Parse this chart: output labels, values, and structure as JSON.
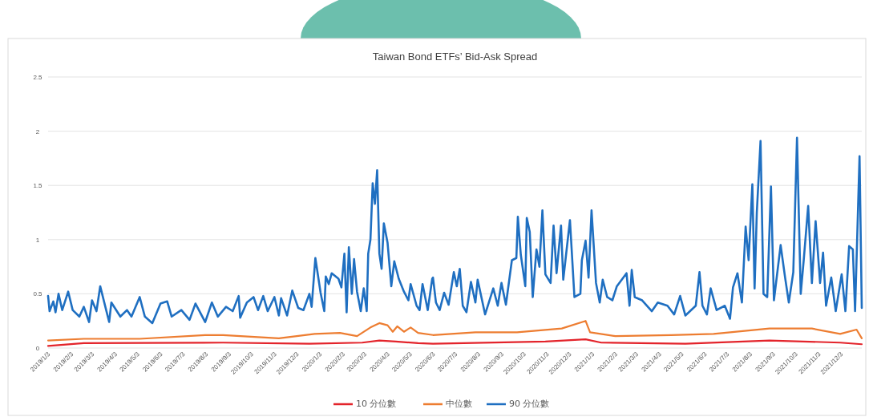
{
  "chart_data": {
    "type": "line",
    "title": "Taiwan Bond ETFs’ Bid-Ask Spread",
    "xlim": [
      "2019-01-03",
      "2021-12-31"
    ],
    "ylim": [
      0,
      2.5
    ],
    "yticks": [
      0,
      0.5,
      1,
      1.5,
      2,
      2.5
    ],
    "grid": "y",
    "legend": "bottom",
    "xticks": [
      {
        "value": "2019-01-03",
        "label": "2019/1/3"
      },
      {
        "value": "2019-02-03",
        "label": "2019/2/3"
      },
      {
        "value": "2019-03-03",
        "label": "2019/3/3"
      },
      {
        "value": "2019-04-03",
        "label": "2019/4/3"
      },
      {
        "value": "2019-05-03",
        "label": "2019/5/3"
      },
      {
        "value": "2019-06-03",
        "label": "2019/6/3"
      },
      {
        "value": "2019-07-03",
        "label": "2019/7/3"
      },
      {
        "value": "2019-08-03",
        "label": "2019/8/3"
      },
      {
        "value": "2019-09-03",
        "label": "2019/9/3"
      },
      {
        "value": "2019-10-03",
        "label": "2019/10/3"
      },
      {
        "value": "2019-11-03",
        "label": "2019/11/3"
      },
      {
        "value": "2019-12-03",
        "label": "2019/12/3"
      },
      {
        "value": "2020-01-03",
        "label": "2020/1/3"
      },
      {
        "value": "2020-02-03",
        "label": "2020/2/3"
      },
      {
        "value": "2020-03-03",
        "label": "2020/3/3"
      },
      {
        "value": "2020-04-03",
        "label": "2020/4/3"
      },
      {
        "value": "2020-05-03",
        "label": "2020/5/3"
      },
      {
        "value": "2020-06-03",
        "label": "2020/6/3"
      },
      {
        "value": "2020-07-03",
        "label": "2020/7/3"
      },
      {
        "value": "2020-08-03",
        "label": "2020/8/3"
      },
      {
        "value": "2020-09-03",
        "label": "2020/9/3"
      },
      {
        "value": "2020-10-03",
        "label": "2020/10/3"
      },
      {
        "value": "2020-11-03",
        "label": "2020/11/3"
      },
      {
        "value": "2020-12-03",
        "label": "2020/12/3"
      },
      {
        "value": "2021-01-03",
        "label": "2021/1/3"
      },
      {
        "value": "2021-02-03",
        "label": "2021/2/3"
      },
      {
        "value": "2021-03-03",
        "label": "2021/3/3"
      },
      {
        "value": "2021-04-03",
        "label": "2021/4/3"
      },
      {
        "value": "2021-05-03",
        "label": "2021/5/3"
      },
      {
        "value": "2021-06-03",
        "label": "2021/6/3"
      },
      {
        "value": "2021-07-03",
        "label": "2021/7/3"
      },
      {
        "value": "2021-08-03",
        "label": "2021/8/3"
      },
      {
        "value": "2021-09-03",
        "label": "2021/9/3"
      },
      {
        "value": "2021-10-03",
        "label": "2021/10/3"
      },
      {
        "value": "2021-11-03",
        "label": "2021/11/3"
      },
      {
        "value": "2021-12-03",
        "label": "2021/12/3"
      }
    ],
    "series": [
      {
        "name": "10 分位數",
        "color": "#e3242b",
        "x": [
          "2019-01-03",
          "2019-02-20",
          "2019-08-26",
          "2019-12-20",
          "2020-02-29",
          "2020-03-23",
          "2020-04-14",
          "2020-05-14",
          "2020-06-03",
          "2020-11-01",
          "2020-12-25",
          "2021-01-15",
          "2021-05-08",
          "2021-08-29",
          "2021-12-02",
          "2021-12-31"
        ],
        "values": [
          0.02,
          0.045,
          0.05,
          0.04,
          0.05,
          0.07,
          0.06,
          0.045,
          0.04,
          0.06,
          0.08,
          0.05,
          0.04,
          0.07,
          0.05,
          0.035
        ]
      },
      {
        "name": "中位數",
        "color": "#ed7d31",
        "x": [
          "2019-01-03",
          "2019-02-20",
          "2019-05-06",
          "2019-08-03",
          "2019-08-26",
          "2019-11-09",
          "2019-12-27",
          "2020-01-30",
          "2020-02-22",
          "2020-03-11",
          "2020-03-23",
          "2020-04-03",
          "2020-04-10",
          "2020-04-16",
          "2020-04-25",
          "2020-05-04",
          "2020-05-14",
          "2020-06-03",
          "2020-07-30",
          "2020-09-24",
          "2020-11-23",
          "2020-12-25",
          "2020-12-31",
          "2021-02-03",
          "2021-04-19",
          "2021-06-15",
          "2021-08-29",
          "2021-10-25",
          "2021-12-02",
          "2021-12-24",
          "2021-12-31"
        ],
        "values": [
          0.07,
          0.085,
          0.085,
          0.12,
          0.12,
          0.09,
          0.13,
          0.14,
          0.11,
          0.19,
          0.23,
          0.21,
          0.15,
          0.2,
          0.15,
          0.19,
          0.14,
          0.12,
          0.145,
          0.145,
          0.18,
          0.25,
          0.145,
          0.11,
          0.12,
          0.13,
          0.18,
          0.18,
          0.13,
          0.17,
          0.09
        ]
      },
      {
        "name": "90 分位數",
        "color": "#1f6fc1",
        "x": [
          "2019-01-03",
          "2019-01-05",
          "2019-01-10",
          "2019-01-13",
          "2019-01-17",
          "2019-01-22",
          "2019-01-30",
          "2019-02-05",
          "2019-02-14",
          "2019-02-20",
          "2019-02-27",
          "2019-03-03",
          "2019-03-09",
          "2019-03-14",
          "2019-03-22",
          "2019-03-26",
          "2019-03-29",
          "2019-04-10",
          "2019-04-19",
          "2019-04-25",
          "2019-05-06",
          "2019-05-13",
          "2019-05-23",
          "2019-06-03",
          "2019-06-12",
          "2019-06-18",
          "2019-07-01",
          "2019-07-12",
          "2019-07-20",
          "2019-08-02",
          "2019-08-11",
          "2019-08-19",
          "2019-08-30",
          "2019-09-08",
          "2019-09-16",
          "2019-09-18",
          "2019-09-27",
          "2019-10-06",
          "2019-10-12",
          "2019-10-19",
          "2019-10-25",
          "2019-11-03",
          "2019-11-09",
          "2019-11-12",
          "2019-11-20",
          "2019-11-27",
          "2019-12-05",
          "2019-12-12",
          "2019-12-20",
          "2019-12-23",
          "2019-12-28",
          "2020-01-04",
          "2020-01-09",
          "2020-01-11",
          "2020-01-15",
          "2020-01-19",
          "2020-01-28",
          "2020-02-01",
          "2020-02-05",
          "2020-02-08",
          "2020-02-11",
          "2020-02-15",
          "2020-02-18",
          "2020-02-22",
          "2020-02-27",
          "2020-03-02",
          "2020-03-06",
          "2020-03-08",
          "2020-03-11",
          "2020-03-14",
          "2020-03-17",
          "2020-03-20",
          "2020-03-23",
          "2020-03-26",
          "2020-03-29",
          "2020-04-03",
          "2020-04-08",
          "2020-04-12",
          "2020-04-18",
          "2020-04-25",
          "2020-05-01",
          "2020-05-04",
          "2020-05-12",
          "2020-05-16",
          "2020-05-20",
          "2020-05-27",
          "2020-06-02",
          "2020-06-03",
          "2020-06-07",
          "2020-06-12",
          "2020-06-18",
          "2020-06-24",
          "2020-07-01",
          "2020-07-05",
          "2020-07-09",
          "2020-07-13",
          "2020-07-18",
          "2020-07-24",
          "2020-07-30",
          "2020-08-02",
          "2020-08-12",
          "2020-08-23",
          "2020-08-29",
          "2020-09-03",
          "2020-09-09",
          "2020-09-17",
          "2020-09-23",
          "2020-09-25",
          "2020-09-29",
          "2020-10-05",
          "2020-10-07",
          "2020-10-11",
          "2020-10-15",
          "2020-10-20",
          "2020-10-24",
          "2020-10-28",
          "2020-11-01",
          "2020-11-08",
          "2020-11-12",
          "2020-11-16",
          "2020-11-22",
          "2020-11-25",
          "2020-12-04",
          "2020-12-10",
          "2020-12-18",
          "2020-12-20",
          "2020-12-25",
          "2020-12-29",
          "2021-01-02",
          "2021-01-08",
          "2021-01-13",
          "2021-01-17",
          "2021-01-23",
          "2021-01-30",
          "2021-02-05",
          "2021-02-18",
          "2021-02-22",
          "2021-02-25",
          "2021-03-01",
          "2021-03-11",
          "2021-03-24",
          "2021-04-01",
          "2021-04-14",
          "2021-04-23",
          "2021-05-01",
          "2021-05-08",
          "2021-05-22",
          "2021-05-27",
          "2021-05-31",
          "2021-06-06",
          "2021-06-11",
          "2021-06-19",
          "2021-06-30",
          "2021-07-07",
          "2021-07-11",
          "2021-07-17",
          "2021-07-23",
          "2021-07-28",
          "2021-08-01",
          "2021-08-06",
          "2021-08-09",
          "2021-08-12",
          "2021-08-17",
          "2021-08-21",
          "2021-08-26",
          "2021-08-31",
          "2021-09-04",
          "2021-09-13",
          "2021-09-19",
          "2021-09-24",
          "2021-09-30",
          "2021-10-05",
          "2021-10-10",
          "2021-10-14",
          "2021-10-20",
          "2021-10-25",
          "2021-10-30",
          "2021-11-05",
          "2021-11-09",
          "2021-11-13",
          "2021-11-20",
          "2021-11-26",
          "2021-12-04",
          "2021-12-09",
          "2021-12-14",
          "2021-12-19",
          "2021-12-22",
          "2021-12-28",
          "2021-12-31"
        ],
        "values": [
          0.48,
          0.34,
          0.43,
          0.33,
          0.5,
          0.35,
          0.52,
          0.35,
          0.29,
          0.38,
          0.24,
          0.44,
          0.34,
          0.57,
          0.35,
          0.24,
          0.42,
          0.29,
          0.35,
          0.29,
          0.47,
          0.29,
          0.23,
          0.41,
          0.43,
          0.29,
          0.35,
          0.26,
          0.41,
          0.24,
          0.42,
          0.29,
          0.38,
          0.34,
          0.48,
          0.28,
          0.42,
          0.47,
          0.35,
          0.48,
          0.34,
          0.47,
          0.3,
          0.46,
          0.3,
          0.53,
          0.37,
          0.35,
          0.5,
          0.38,
          0.83,
          0.51,
          0.34,
          0.66,
          0.59,
          0.69,
          0.64,
          0.56,
          0.87,
          0.33,
          0.93,
          0.5,
          0.82,
          0.52,
          0.34,
          0.55,
          0.34,
          0.87,
          1.0,
          1.52,
          1.33,
          1.64,
          0.87,
          0.73,
          1.15,
          0.97,
          0.57,
          0.8,
          0.64,
          0.52,
          0.44,
          0.59,
          0.39,
          0.35,
          0.59,
          0.35,
          0.64,
          0.65,
          0.42,
          0.35,
          0.51,
          0.4,
          0.7,
          0.57,
          0.73,
          0.39,
          0.33,
          0.61,
          0.42,
          0.63,
          0.31,
          0.55,
          0.39,
          0.6,
          0.4,
          0.81,
          0.83,
          1.21,
          0.86,
          0.57,
          1.2,
          1.07,
          0.47,
          0.91,
          0.75,
          1.27,
          0.68,
          0.6,
          1.13,
          0.69,
          1.13,
          0.63,
          1.18,
          0.47,
          0.5,
          0.81,
          0.99,
          0.65,
          1.27,
          0.6,
          0.42,
          0.63,
          0.47,
          0.44,
          0.57,
          0.69,
          0.39,
          0.72,
          0.47,
          0.44,
          0.34,
          0.42,
          0.39,
          0.31,
          0.48,
          0.3,
          0.39,
          0.7,
          0.39,
          0.31,
          0.55,
          0.35,
          0.39,
          0.27,
          0.56,
          0.69,
          0.42,
          1.12,
          0.81,
          1.51,
          0.55,
          1.25,
          1.91,
          0.5,
          0.47,
          1.49,
          0.44,
          0.95,
          0.65,
          0.42,
          0.7,
          1.94,
          0.5,
          0.81,
          1.31,
          0.6,
          1.17,
          0.6,
          0.88,
          0.39,
          0.65,
          0.34,
          0.68,
          0.34,
          0.94,
          0.91,
          0.34,
          1.77,
          0.37
        ]
      }
    ]
  }
}
